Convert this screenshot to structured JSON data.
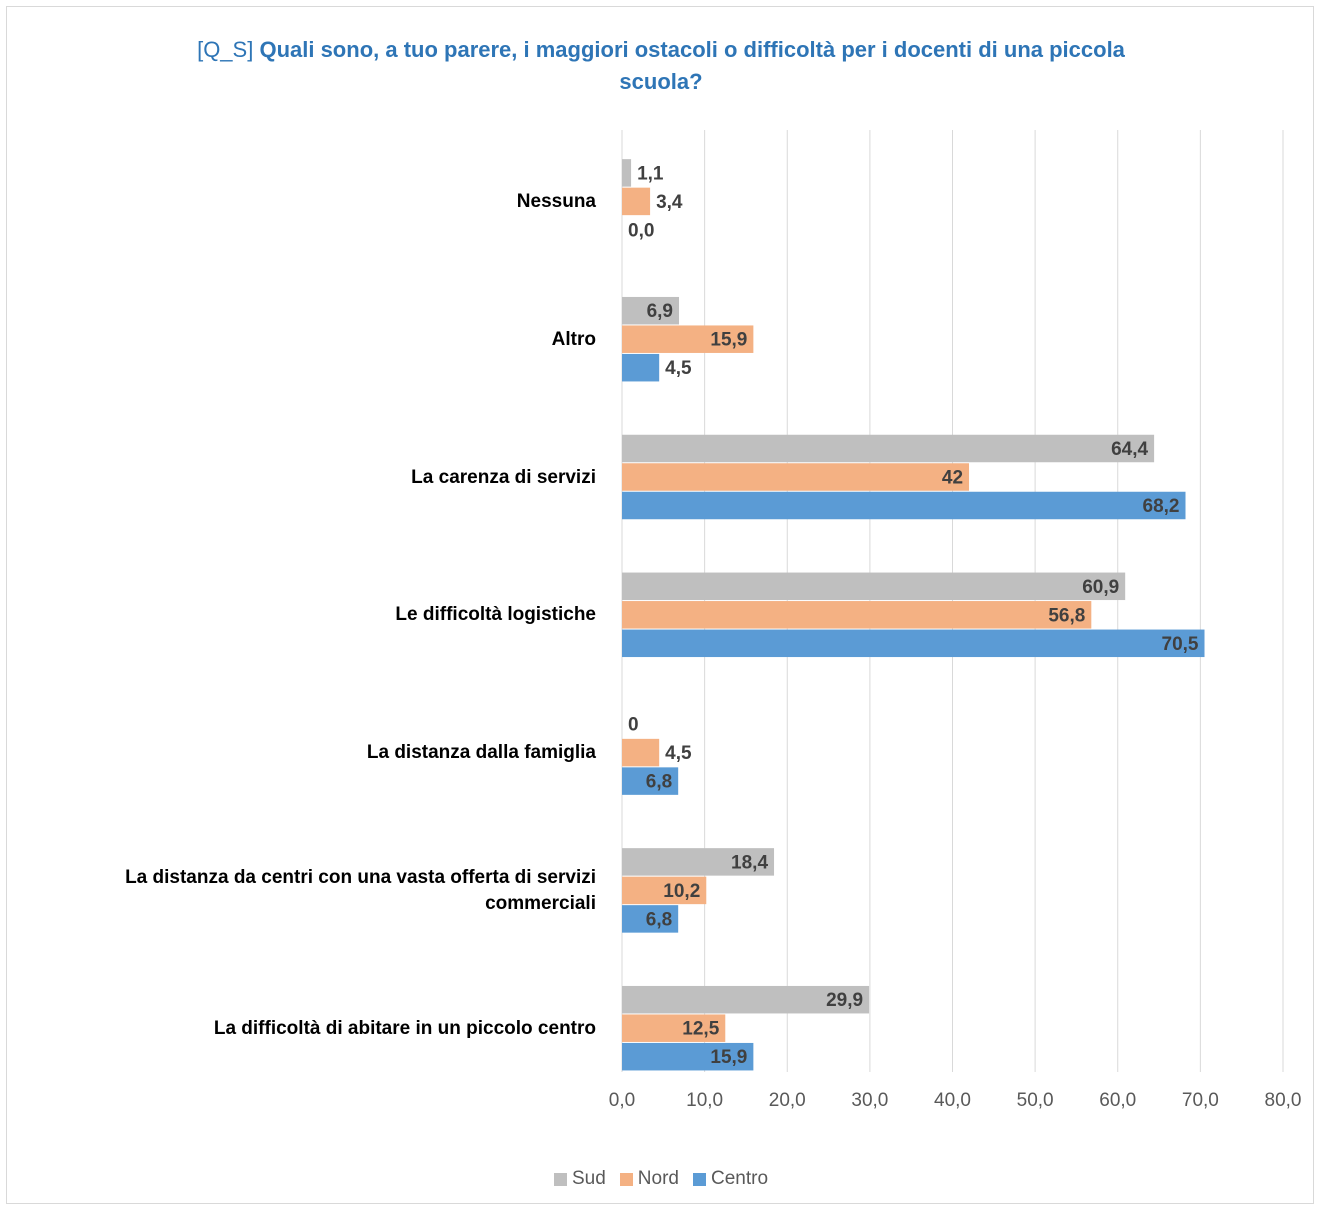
{
  "chart_data": {
    "type": "hbar",
    "title_tag": "[Q_S]",
    "title": "Quali sono, a tuo parere, i maggiori ostacoli o difficoltà per i docenti di una piccola scuola?",
    "categories": [
      "Nessuna",
      "Altro",
      "La carenza di servizi",
      "Le difficoltà logistiche",
      "La distanza dalla famiglia",
      "La distanza da centri con una vasta offerta di servizi commerciali",
      "La difficoltà di abitare in un piccolo centro"
    ],
    "series": [
      {
        "name": "Sud",
        "color": "#bfbfbf",
        "values": [
          1.1,
          6.9,
          64.4,
          60.9,
          0,
          18.4,
          29.9
        ],
        "value_labels": [
          "1,1",
          "6,9",
          "64,4",
          "60,9",
          "0",
          "18,4",
          "29,9"
        ]
      },
      {
        "name": "Nord",
        "color": "#f4b183",
        "values": [
          3.4,
          15.9,
          42,
          56.8,
          4.5,
          10.2,
          12.5
        ],
        "value_labels": [
          "3,4",
          "15,9",
          "42",
          "56,8",
          "4,5",
          "10,2",
          "12,5"
        ]
      },
      {
        "name": "Centro",
        "color": "#5b9bd5",
        "values": [
          0.0,
          4.5,
          68.2,
          70.5,
          6.8,
          6.8,
          15.9
        ],
        "value_labels": [
          "0,0",
          "4,5",
          "68,2",
          "70,5",
          "6,8",
          "6,8",
          "15,9"
        ]
      }
    ],
    "xlim": [
      0,
      80
    ],
    "xticks": [
      {
        "value": 0,
        "label": "0,0"
      },
      {
        "value": 10,
        "label": "10,0"
      },
      {
        "value": 20,
        "label": "20,0"
      },
      {
        "value": 30,
        "label": "30,0"
      },
      {
        "value": 40,
        "label": "40,0"
      },
      {
        "value": 50,
        "label": "50,0"
      },
      {
        "value": 60,
        "label": "60,0"
      },
      {
        "value": 70,
        "label": "70,0"
      },
      {
        "value": 80,
        "label": "80,0"
      }
    ],
    "grid": true,
    "legend": "bottom"
  }
}
